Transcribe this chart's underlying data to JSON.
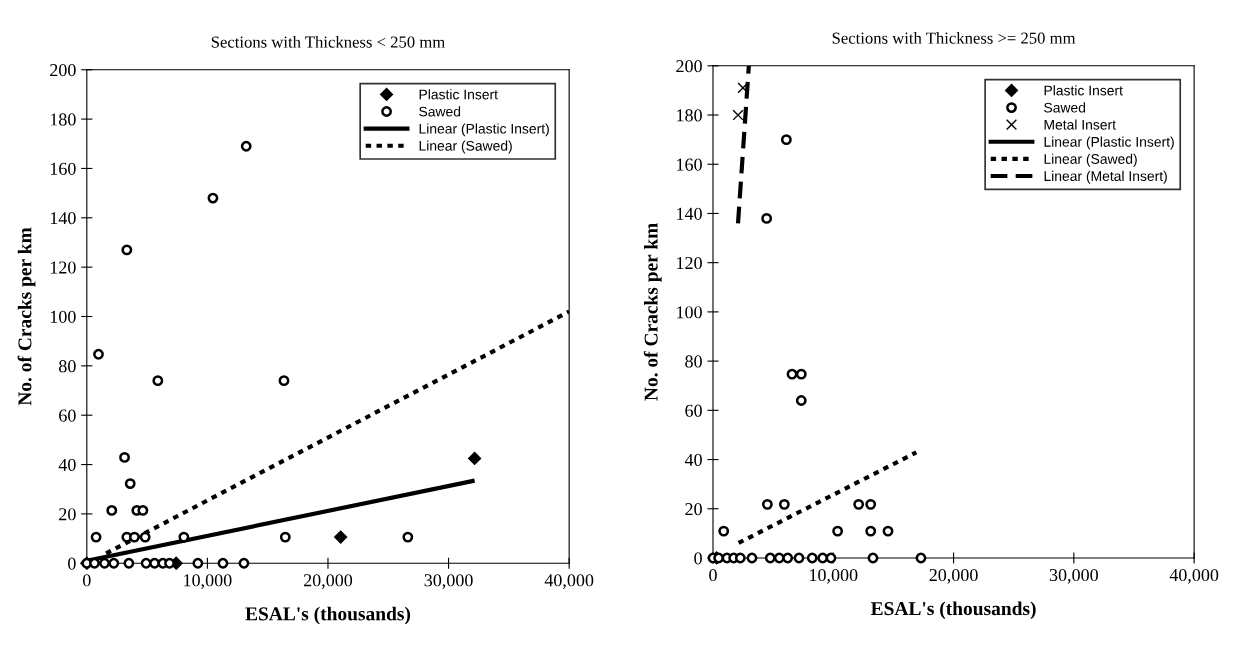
{
  "chart_data": [
    {
      "type": "scatter",
      "title": "Sections with Thickness < 250 mm",
      "xlabel": "ESAL's (thousands)",
      "ylabel": "No. of Cracks per km",
      "xlim": [
        0,
        40000
      ],
      "ylim": [
        0,
        200
      ],
      "xticks": [
        0,
        {
          "value": 10000,
          "label": "10,000"
        },
        {
          "value": 20000,
          "label": "20,000"
        },
        {
          "value": 30000,
          "label": "30,000"
        },
        {
          "value": 40000,
          "label": "40,000"
        }
      ],
      "yticks": [
        0,
        20,
        40,
        60,
        80,
        100,
        120,
        140,
        160,
        180,
        200
      ],
      "grid": false,
      "legend": "top right",
      "series": [
        {
          "name": "Plastic Insert",
          "type": "scatter",
          "marker": "diamond",
          "color": "#000000",
          "x": [
            0,
            7410,
            21050,
            32160
          ],
          "values": [
            0,
            0,
            10.6,
            42.5
          ]
        },
        {
          "name": "Sawed",
          "type": "scatter",
          "marker": "circle",
          "color": "#000000",
          "x": [
            13220,
            10460,
            3320,
            970,
            5890,
            16350,
            3130,
            3600,
            2070,
            4150,
            4650,
            770,
            3320,
            3950,
            4840,
            8050,
            16460,
            26620,
            0,
            640,
            1470,
            2240,
            3490,
            4920,
            5620,
            6310,
            6860,
            9210,
            11290,
            13030
          ],
          "values": [
            169,
            148,
            127,
            84.7,
            74,
            74,
            42.9,
            32.3,
            21.4,
            21.4,
            21.4,
            10.6,
            10.6,
            10.6,
            10.6,
            10.6,
            10.6,
            10.6,
            0,
            0,
            0,
            0,
            0,
            0,
            0,
            0,
            0,
            0,
            0,
            0
          ]
        },
        {
          "name": "Linear (Plastic Insert)",
          "type": "line",
          "line_style": "solid",
          "color": "#000000",
          "x": [
            0,
            32160
          ],
          "values": [
            1,
            33.5
          ]
        },
        {
          "name": "Linear (Sawed)",
          "type": "line",
          "line_style": "dotted",
          "color": "#000000",
          "x": [
            1600,
            40000
          ],
          "values": [
            4,
            102
          ]
        }
      ]
    },
    {
      "type": "scatter",
      "title": "Sections with Thickness >= 250 mm",
      "xlabel": "ESAL's (thousands)",
      "ylabel": "No. of Cracks per km",
      "xlim": [
        0,
        40000
      ],
      "ylim": [
        0,
        200
      ],
      "xticks": [
        0,
        {
          "value": 10000,
          "label": "10,000"
        },
        {
          "value": 20000,
          "label": "20,000"
        },
        {
          "value": 30000,
          "label": "30,000"
        },
        {
          "value": 40000,
          "label": "40,000"
        }
      ],
      "yticks": [
        0,
        20,
        40,
        60,
        80,
        100,
        120,
        140,
        160,
        180,
        200
      ],
      "grid": false,
      "legend": "top right",
      "series": [
        {
          "name": "Plastic Insert",
          "type": "scatter",
          "marker": "diamond",
          "color": "#000000",
          "x": [
            300
          ],
          "values": [
            0
          ]
        },
        {
          "name": "Sawed",
          "type": "scatter",
          "marker": "circle",
          "color": "#000000",
          "x": [
            6100,
            4460,
            6570,
            7340,
            7340,
            4520,
            5930,
            12110,
            13110,
            890,
            10360,
            13110,
            14550,
            0,
            470,
            1160,
            1720,
            2270,
            3240,
            4760,
            5510,
            6210,
            7150,
            8250,
            9120,
            9810,
            13300,
            17290
          ],
          "values": [
            170,
            138,
            74.7,
            74.7,
            64,
            21.8,
            21.8,
            21.8,
            21.8,
            10.9,
            10.9,
            10.9,
            10.9,
            0,
            0,
            0,
            0,
            0,
            0,
            0,
            0,
            0,
            0,
            0,
            0,
            0,
            0,
            0
          ]
        },
        {
          "name": "Metal Insert",
          "type": "scatter",
          "marker": "cross",
          "color": "#000000",
          "x": [
            2080,
            2490
          ],
          "values": [
            180,
            191
          ]
        },
        {
          "name": "Linear (Plastic Insert)",
          "type": "line",
          "line_style": "solid",
          "color": "#000000"
        },
        {
          "name": "Linear (Sawed)",
          "type": "line",
          "line_style": "dotted",
          "color": "#000000",
          "x": [
            2130,
            16900
          ],
          "values": [
            6.1,
            42.9
          ]
        },
        {
          "name": "Linear (Metal Insert)",
          "type": "line",
          "line_style": "dashed",
          "color": "#000000",
          "x": [
            2080,
            2980
          ],
          "values": [
            136,
            200
          ]
        }
      ]
    }
  ]
}
